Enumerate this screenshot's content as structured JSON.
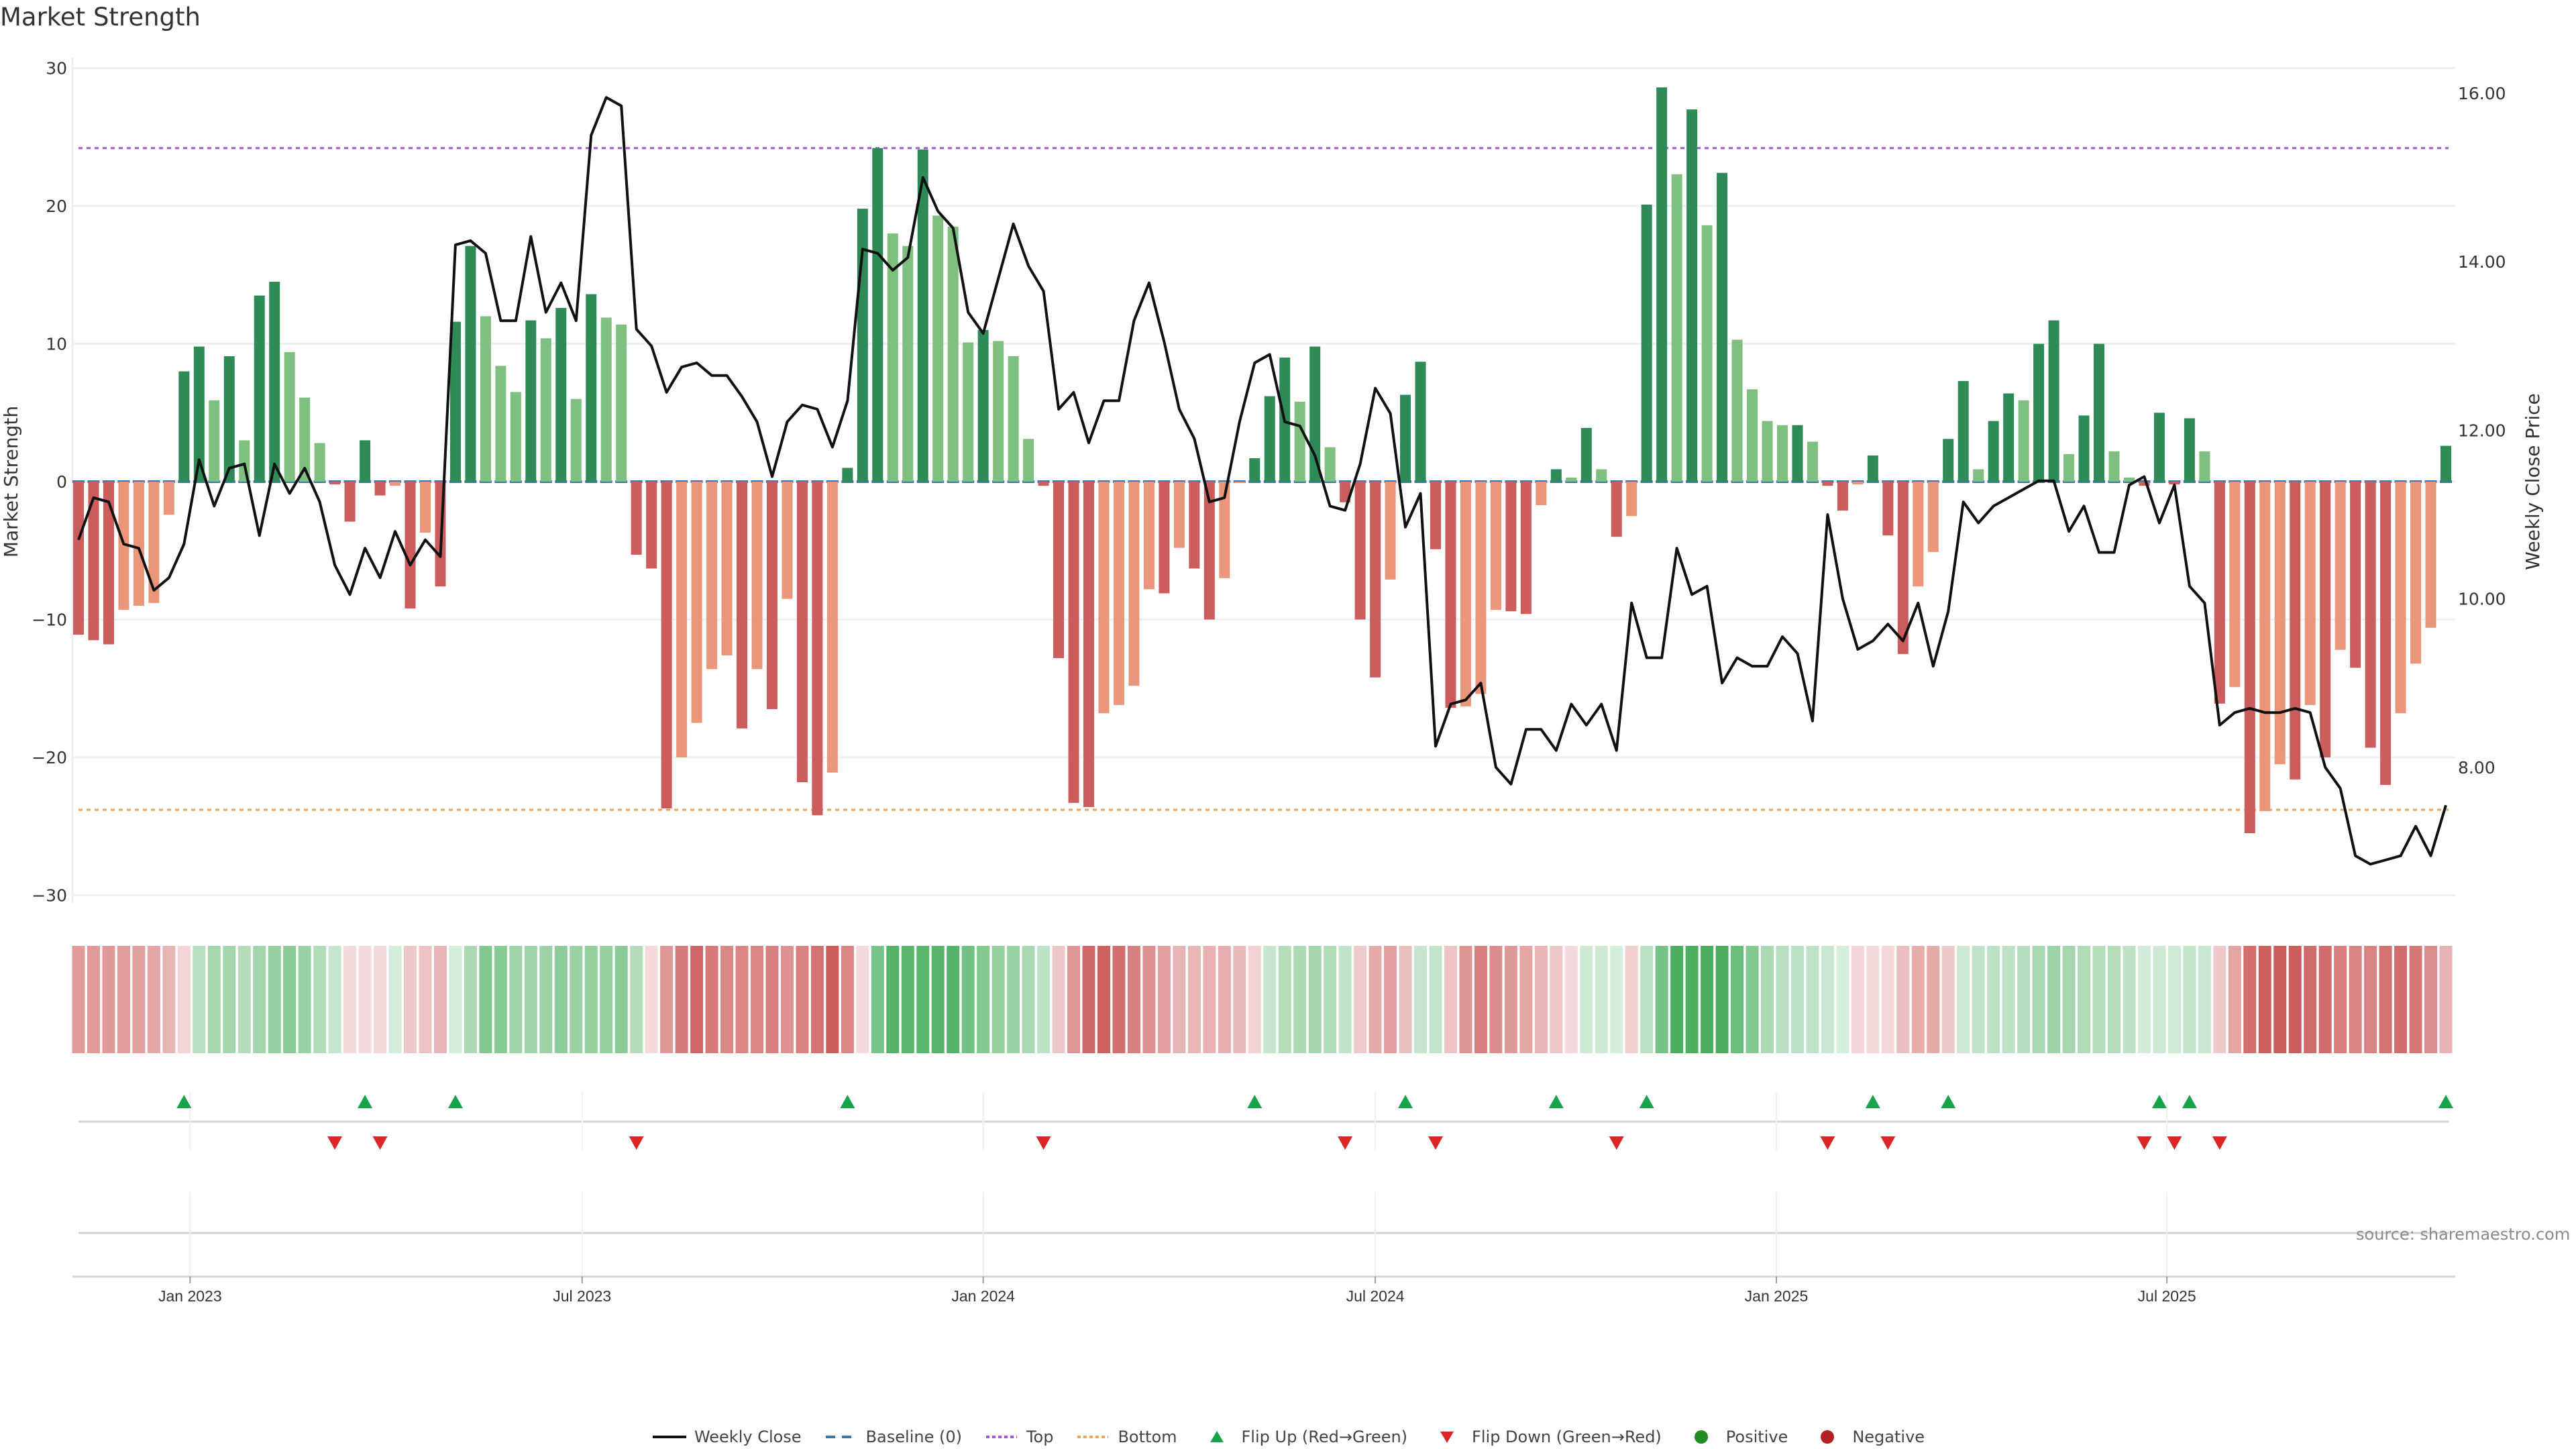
{
  "title": "Market Strength",
  "source": "source: sharemaestro.com",
  "colors": {
    "pos_strong": "#2e8b57",
    "pos_weak": "#7fbf7f",
    "neg_strong": "#cd5c5c",
    "neg_weak": "#e9967a",
    "line": "#111111",
    "baseline": "#3a78a8",
    "top": "#a158d6",
    "bottom": "#f0a458",
    "flip_up": "#16a34a",
    "flip_down": "#dc2626",
    "positive_dot": "#228b22",
    "negative_dot": "#b22222",
    "grid": "#eef0f4"
  },
  "chart_data": {
    "type": "bar+line",
    "title": "Market Strength",
    "ylabel": "Market Strength",
    "y2label": "Weekly Close Price",
    "ylim": [
      -32.5,
      30.9
    ],
    "y2lim": [
      6.5,
      16.3
    ],
    "yticks": [
      30,
      20,
      10,
      0,
      -10,
      -20,
      -30
    ],
    "ytick_labels": [
      "30",
      "20",
      "10",
      "0",
      "−10",
      "−20",
      "−30"
    ],
    "y2ticks": [
      16,
      14,
      12,
      10,
      8
    ],
    "y2tick_labels": [
      "16.00",
      "14.00",
      "12.00",
      "10.00",
      "8.00"
    ],
    "xticks": [
      {
        "pos": 7.4,
        "label": "Jan 2023"
      },
      {
        "pos": 33.4,
        "label": "Jul 2023"
      },
      {
        "pos": 60.0,
        "label": "Jan 2024"
      },
      {
        "pos": 86.0,
        "label": "Jul 2024"
      },
      {
        "pos": 112.6,
        "label": "Jan 2025"
      },
      {
        "pos": 138.5,
        "label": "Jul 2025"
      }
    ],
    "top_threshold": 24.2,
    "bottom_threshold": -23.8,
    "baseline": 0,
    "strength": [
      -11.1,
      -11.5,
      -11.8,
      -9.3,
      -9.0,
      -8.8,
      -2.4,
      8.0,
      9.8,
      5.9,
      9.1,
      3.0,
      13.5,
      14.5,
      9.4,
      6.1,
      2.8,
      -0.2,
      -2.9,
      3.0,
      -1.0,
      -0.3,
      -9.2,
      -3.7,
      -7.6,
      11.6,
      17.1,
      12.0,
      8.4,
      6.5,
      11.7,
      10.4,
      12.6,
      6.0,
      13.6,
      11.9,
      11.4,
      -5.3,
      -6.3,
      -23.7,
      -20.0,
      -17.5,
      -13.6,
      -12.6,
      -17.9,
      -13.6,
      -16.5,
      -8.5,
      -21.8,
      -24.2,
      -21.1,
      1.0,
      19.8,
      24.2,
      18.0,
      17.1,
      24.1,
      19.3,
      18.5,
      10.1,
      11.0,
      10.2,
      9.1,
      3.1,
      -0.3,
      -12.8,
      -23.3,
      -23.6,
      -16.8,
      -16.2,
      -14.8,
      -7.8,
      -8.1,
      -4.8,
      -6.3,
      -10.0,
      -7.0,
      -0.1,
      1.7,
      6.2,
      9.0,
      5.8,
      9.8,
      2.5,
      -1.5,
      -10.0,
      -14.2,
      -7.1,
      6.3,
      8.7,
      -4.9,
      -16.4,
      -16.3,
      -15.4,
      -9.3,
      -9.4,
      -9.6,
      -1.7,
      0.9,
      0.3,
      3.9,
      0.9,
      -4.0,
      -2.5,
      20.1,
      28.6,
      22.3,
      27.0,
      18.6,
      22.4,
      10.3,
      6.7,
      4.4,
      4.1,
      4.1,
      2.9,
      -0.3,
      -2.1,
      -0.2,
      1.9,
      -3.9,
      -12.5,
      -7.6,
      -5.1,
      3.1,
      7.3,
      0.9,
      4.4,
      6.4,
      5.9,
      10.0,
      11.7,
      2.0,
      4.8,
      10.0,
      2.2,
      0.3,
      -0.3,
      5.0,
      -0.2,
      4.6,
      2.2,
      -16.1,
      -14.9,
      -25.5,
      -23.9,
      -20.5,
      -21.6,
      -16.2,
      -20.0,
      -12.2,
      -13.5,
      -19.3,
      -22.0,
      -16.8,
      -13.2,
      -10.6,
      2.6
    ],
    "weekly_close": [
      10.7,
      11.2,
      11.15,
      10.65,
      10.6,
      10.1,
      10.25,
      10.65,
      11.65,
      11.1,
      11.55,
      11.6,
      10.75,
      11.6,
      11.25,
      11.55,
      11.15,
      10.4,
      10.05,
      10.6,
      10.25,
      10.8,
      10.4,
      10.7,
      10.5,
      14.2,
      14.25,
      14.1,
      13.3,
      13.3,
      14.3,
      13.4,
      13.75,
      13.3,
      15.5,
      15.95,
      15.85,
      13.2,
      13.0,
      12.45,
      12.75,
      12.8,
      12.65,
      12.65,
      12.4,
      12.1,
      11.45,
      12.1,
      12.3,
      12.25,
      11.8,
      12.35,
      14.15,
      14.1,
      13.9,
      14.05,
      15.0,
      14.6,
      14.4,
      13.4,
      13.15,
      13.8,
      14.45,
      13.95,
      13.65,
      12.25,
      12.45,
      11.85,
      12.35,
      12.35,
      13.3,
      13.75,
      13.05,
      12.25,
      11.9,
      11.15,
      11.2,
      12.1,
      12.8,
      12.9,
      12.1,
      12.05,
      11.7,
      11.1,
      11.05,
      11.6,
      12.5,
      12.2,
      10.85,
      11.25,
      8.25,
      8.75,
      8.8,
      9.0,
      8.0,
      7.8,
      8.45,
      8.45,
      8.2,
      8.75,
      8.5,
      8.75,
      8.2,
      9.95,
      9.3,
      9.3,
      10.6,
      10.05,
      10.15,
      9.0,
      9.3,
      9.2,
      9.2,
      9.55,
      9.35,
      8.55,
      11.0,
      10.0,
      9.4,
      9.5,
      9.7,
      9.5,
      9.95,
      9.2,
      9.85,
      11.15,
      10.9,
      11.1,
      11.2,
      11.3,
      11.4,
      11.4,
      10.8,
      11.1,
      10.55,
      10.55,
      11.35,
      11.45,
      10.9,
      11.35,
      10.15,
      9.95,
      8.5,
      8.65,
      8.7,
      8.65,
      8.65,
      8.7,
      8.65,
      8.0,
      7.75,
      6.95,
      6.85,
      6.9,
      6.95,
      7.3,
      6.95,
      7.55
    ],
    "flips_up": [
      7,
      19,
      25,
      51,
      78,
      88,
      98,
      104,
      119,
      124,
      138,
      140,
      157
    ],
    "flips_down": [
      17,
      20,
      37,
      64,
      84,
      90,
      102,
      116,
      120,
      137,
      139,
      142
    ],
    "grid": true,
    "legend_position": "bottom-center"
  },
  "legend": [
    {
      "key": "line",
      "label": "Weekly Close"
    },
    {
      "key": "baseline",
      "label": "Baseline (0)"
    },
    {
      "key": "top",
      "label": "Top"
    },
    {
      "key": "bottom",
      "label": "Bottom"
    },
    {
      "key": "flip_up",
      "label": "Flip Up (Red→Green)"
    },
    {
      "key": "flip_down",
      "label": "Flip Down (Green→Red)"
    },
    {
      "key": "positive",
      "label": "Positive"
    },
    {
      "key": "negative",
      "label": "Negative"
    }
  ]
}
